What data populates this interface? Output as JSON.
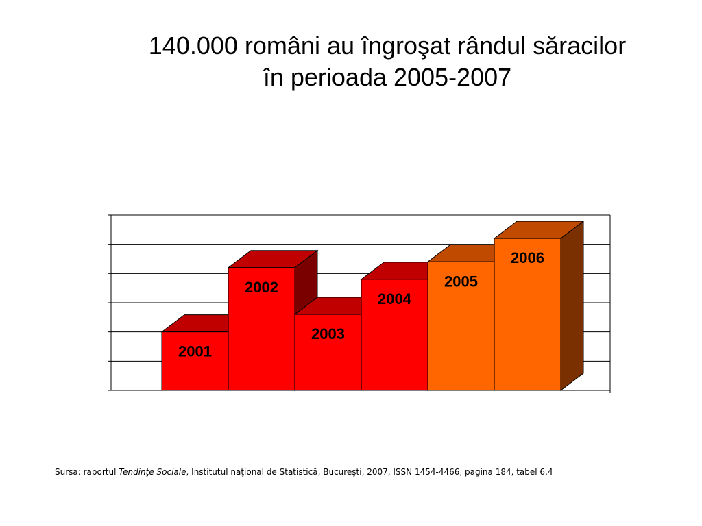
{
  "title": {
    "line1": "140.000 români au îngroşat rândul săracilor",
    "line2": "în perioada 2005-2007"
  },
  "source": {
    "prefix": "Sursa: raportul ",
    "italic": "Tendinţe Sociale",
    "suffix": ", Institutul naţional de Statistică, Bucureşti, 2007, ISSN 1454-4466, pagina 184, tabel 6.4"
  },
  "chart_data": {
    "type": "bar",
    "categories": [
      "2001",
      "2002",
      "2003",
      "2004",
      "2005",
      "2006"
    ],
    "values": [
      2.0,
      4.2,
      2.6,
      3.8,
      4.4,
      5.2
    ],
    "ylim": [
      0,
      6
    ],
    "grid": true,
    "legend": "none",
    "bar_colors": {
      "red": {
        "front": "#ff0000",
        "top": "#c00000",
        "side": "#7a0000"
      },
      "orange": {
        "front": "#ff6600",
        "top": "#c04a00",
        "side": "#7a3000"
      }
    },
    "bar_color_keys": [
      "red",
      "red",
      "red",
      "red",
      "orange",
      "orange"
    ]
  }
}
